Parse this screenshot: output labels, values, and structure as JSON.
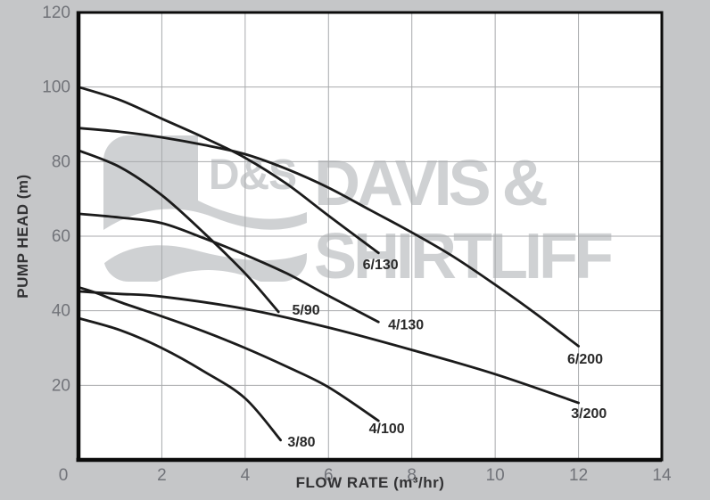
{
  "chart_data": {
    "type": "line",
    "title": "",
    "xlabel": "FLOW RATE (m³/hr)",
    "ylabel": "PUMP HEAD (m)",
    "xlim": [
      0,
      14
    ],
    "ylim": [
      0,
      120
    ],
    "xticks": [
      0,
      2,
      4,
      6,
      8,
      10,
      12,
      14
    ],
    "yticks": [
      20,
      40,
      60,
      80,
      100,
      120
    ],
    "grid": true,
    "legend_position": "inline-labels",
    "series": [
      {
        "name": "6/130",
        "points": [
          [
            0,
            100
          ],
          [
            1,
            96.5
          ],
          [
            2,
            91.5
          ],
          [
            3,
            86.5
          ],
          [
            4,
            81
          ],
          [
            5,
            74
          ],
          [
            6,
            65.5
          ],
          [
            7.2,
            55.5
          ]
        ],
        "label_pos": [
          7.25,
          52.3
        ]
      },
      {
        "name": "6/200",
        "points": [
          [
            0,
            89
          ],
          [
            1,
            88
          ],
          [
            2,
            86.5
          ],
          [
            3,
            84.5
          ],
          [
            4,
            82
          ],
          [
            5,
            78
          ],
          [
            6,
            73
          ],
          [
            7,
            67
          ],
          [
            8,
            61
          ],
          [
            9,
            54.5
          ],
          [
            10,
            47
          ],
          [
            11,
            39
          ],
          [
            12,
            30.5
          ]
        ],
        "label_pos": [
          12.16,
          27
        ]
      },
      {
        "name": "5/90",
        "points": [
          [
            0,
            83
          ],
          [
            1,
            78.5
          ],
          [
            2,
            71
          ],
          [
            3,
            61
          ],
          [
            4,
            50
          ],
          [
            4.8,
            39.7
          ]
        ],
        "label_pos": [
          5.46,
          40.2
        ]
      },
      {
        "name": "4/130",
        "points": [
          [
            0,
            66
          ],
          [
            1,
            65
          ],
          [
            2,
            63.5
          ],
          [
            3,
            59.5
          ],
          [
            4,
            55
          ],
          [
            5,
            50
          ],
          [
            6,
            44
          ],
          [
            7.2,
            37
          ]
        ],
        "label_pos": [
          7.86,
          36.2
        ]
      },
      {
        "name": "4/100",
        "points": [
          [
            0,
            46.3
          ],
          [
            0.4,
            44.9
          ],
          [
            1,
            42.3
          ],
          [
            2,
            38.5
          ],
          [
            3,
            34.5
          ],
          [
            4,
            30
          ],
          [
            5,
            25
          ],
          [
            6,
            19.5
          ],
          [
            7.2,
            10.5
          ]
        ],
        "label_pos": [
          7.4,
          8.4
        ]
      },
      {
        "name": "3/200",
        "points": [
          [
            0,
            45.2
          ],
          [
            0.4,
            44.9
          ],
          [
            1,
            44.5
          ],
          [
            2,
            43.8
          ],
          [
            4,
            40.5
          ],
          [
            6,
            35.5
          ],
          [
            8,
            29.5
          ],
          [
            10,
            23
          ],
          [
            12,
            15.3
          ]
        ],
        "label_pos": [
          12.25,
          12.4
        ]
      },
      {
        "name": "3/80",
        "points": [
          [
            0,
            38
          ],
          [
            1,
            34.8
          ],
          [
            2,
            30
          ],
          [
            3,
            23.8
          ],
          [
            4,
            16.5
          ],
          [
            4.85,
            5.3
          ]
        ],
        "label_pos": [
          5.35,
          4.8
        ]
      }
    ]
  },
  "watermark": {
    "logo_text": "D&S",
    "line1": "DAVIS &",
    "line2": "SHIRTLIFF"
  },
  "colors": {
    "page_background": "#c5c6c8",
    "plot_background": "#ffffff",
    "plot_border": "#0b0b0b",
    "gridline": "#a8aaac",
    "curve": "#1b1b1b",
    "curve_label": "#2a2a2a",
    "tick_label": "#717379",
    "axis_title": "#323234",
    "watermark": "#cfd1d3"
  }
}
